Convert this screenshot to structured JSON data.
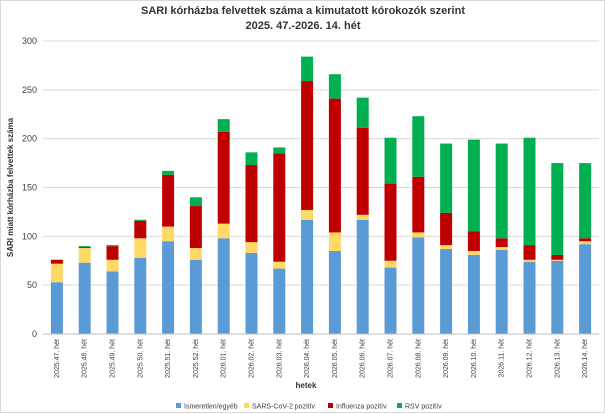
{
  "chart_data": {
    "type": "bar",
    "stacked": true,
    "title": "SARI kórházba felvettek száma a kimutatott kórokozók szerint",
    "subtitle": "2025. 47.-2026. 14. hét",
    "xlabel": "hetek",
    "ylabel": "SARI miatt kórházba felvettek száma",
    "ylim": [
      0,
      300
    ],
    "yticks": [
      0,
      50,
      100,
      150,
      200,
      250,
      300
    ],
    "grid": true,
    "legend_position": "bottom",
    "categories": [
      "2025.47. hét",
      "2025.48. hét",
      "2025.49. hét",
      "2025.50. hét",
      "2025.51. hét",
      "2025.52. hét",
      "2026.01. hét",
      "2026.02. hét",
      "2026.03. hét",
      "2026.04. hét",
      "2026.05. hét",
      "2026.06. hét",
      "2026.07. hét",
      "2026.08. hét",
      "2026.09. hét",
      "2026.10. hét",
      "2026.11. hét",
      "2026.12. hét",
      "2026.13. hét",
      "2026.14. hét"
    ],
    "series": [
      {
        "name": "Ismeretlen/egyéb",
        "color": "#5b9bd5",
        "values": [
          53,
          73,
          64,
          78,
          95,
          76,
          98,
          83,
          67,
          117,
          85,
          117,
          68,
          99,
          87,
          81,
          86,
          74,
          75,
          92
        ]
      },
      {
        "name": "SARS-CoV-2 pozitív",
        "color": "#ffd966",
        "values": [
          19,
          15,
          12,
          20,
          15,
          12,
          15,
          11,
          7,
          10,
          19,
          5,
          7,
          5,
          4,
          4,
          3,
          2,
          1,
          3
        ]
      },
      {
        "name": "Influenza pozitív",
        "color": "#c00000",
        "values": [
          4,
          1,
          14,
          18,
          53,
          43,
          94,
          79,
          111,
          132,
          137,
          89,
          79,
          57,
          33,
          20,
          9,
          15,
          5,
          3
        ]
      },
      {
        "name": "RSV pozitív",
        "color": "#00b050",
        "values": [
          0,
          1,
          1,
          1,
          4,
          9,
          13,
          13,
          6,
          25,
          25,
          31,
          47,
          62,
          71,
          94,
          97,
          110,
          94,
          77
        ]
      }
    ]
  }
}
